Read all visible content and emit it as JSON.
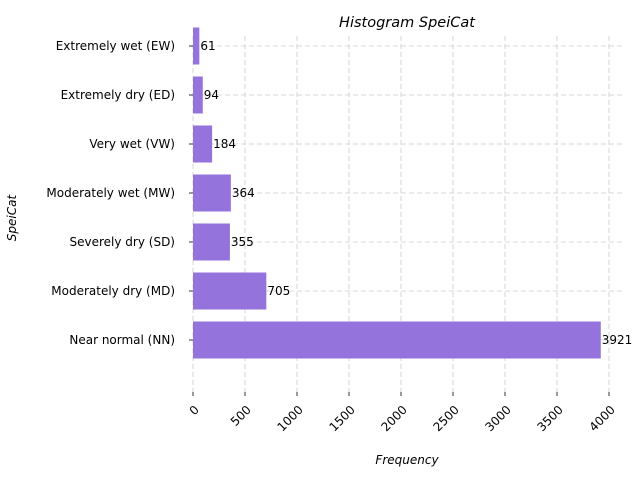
{
  "chart_data": {
    "type": "bar",
    "orientation": "horizontal",
    "title": "Histogram SpeiCat",
    "xlabel": "Frequency",
    "ylabel": "SpeiCat",
    "categories": [
      "Near normal (NN)",
      "Moderately dry (MD)",
      "Severely dry (SD)",
      "Moderately wet (MW)",
      "Very wet (VW)",
      "Extremely dry (ED)",
      "Extremely wet (EW)"
    ],
    "values": [
      3921,
      705,
      355,
      364,
      184,
      94,
      61
    ],
    "xticks": [
      0,
      500,
      1000,
      1500,
      2000,
      2500,
      3000,
      3500,
      4000
    ],
    "xlim": [
      0,
      4000
    ],
    "grid": true,
    "bar_color": "#9370DB",
    "data_labels": true
  }
}
